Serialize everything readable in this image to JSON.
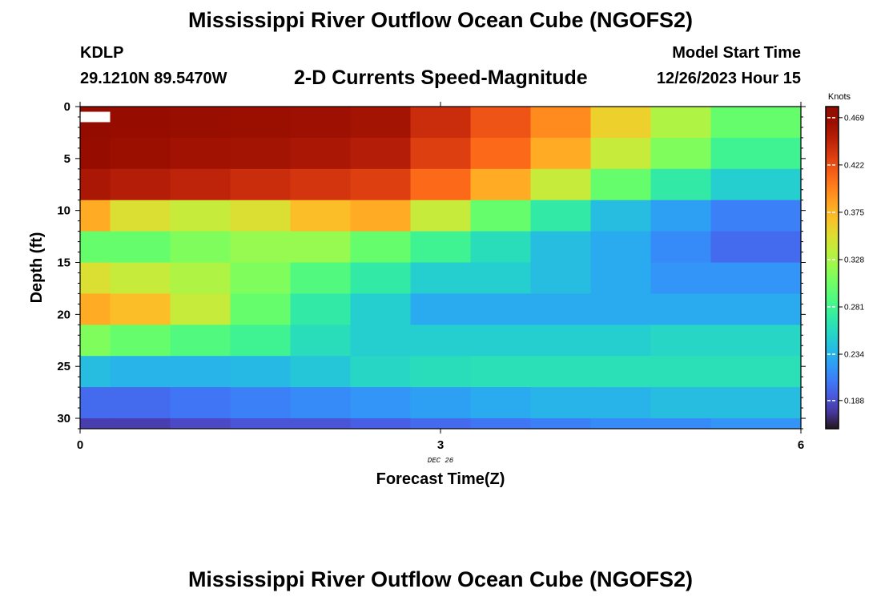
{
  "header": {
    "title": "Mississippi River Outflow Ocean Cube (NGOFS2)",
    "station": "KDLP",
    "coords": "29.1210N  89.5470W",
    "subtitle": "2-D Currents Speed-Magnitude",
    "model_start_label": "Model Start Time",
    "model_start_value": "12/26/2023 Hour 15"
  },
  "footer": {
    "title": "Mississippi River Outflow Ocean Cube (NGOFS2)"
  },
  "chart_data": {
    "type": "heatmap",
    "xlabel": "Forecast Time(Z)",
    "ylabel": "Depth (ft)",
    "x_date_label": "DEC 26",
    "xlim": [
      0,
      6
    ],
    "ylim": [
      0,
      31
    ],
    "x_ticks": [
      0,
      3,
      6
    ],
    "y_ticks": [
      0,
      5,
      10,
      15,
      20,
      25,
      30
    ],
    "colorbar": {
      "unit": "Knots",
      "ticks": [
        "0.469",
        "0.422",
        "0.375",
        "0.328",
        "0.281",
        "0.234",
        "0.188"
      ],
      "tick_values": [
        0.469,
        0.422,
        0.375,
        0.328,
        0.281,
        0.234,
        0.188
      ],
      "range": [
        0.16,
        0.48
      ],
      "colormap": "turbo"
    },
    "x": [
      0.25,
      0.75,
      1.25,
      1.75,
      2.25,
      2.75,
      3.25,
      3.75,
      4.25,
      4.75,
      5.25,
      5.75
    ],
    "x_edges": [
      0,
      0.25,
      0.75,
      1.25,
      1.75,
      2.25,
      2.75,
      3.25,
      3.75,
      4.25,
      4.75,
      5.25,
      6
    ],
    "depth_edges": [
      0,
      3,
      6,
      9,
      12,
      15,
      18,
      21,
      24,
      27,
      30,
      31
    ],
    "values": [
      [
        0.47,
        0.468,
        0.466,
        0.464,
        0.462,
        0.458,
        0.44,
        0.42,
        0.395,
        0.36,
        0.33,
        0.3
      ],
      [
        0.468,
        0.464,
        0.46,
        0.458,
        0.455,
        0.45,
        0.43,
        0.41,
        0.38,
        0.34,
        0.31,
        0.28
      ],
      [
        0.455,
        0.45,
        0.445,
        0.44,
        0.435,
        0.43,
        0.41,
        0.38,
        0.34,
        0.3,
        0.27,
        0.25
      ],
      [
        0.38,
        0.35,
        0.34,
        0.35,
        0.37,
        0.38,
        0.34,
        0.3,
        0.27,
        0.24,
        0.225,
        0.21
      ],
      [
        0.3,
        0.3,
        0.31,
        0.32,
        0.32,
        0.3,
        0.28,
        0.26,
        0.24,
        0.23,
        0.215,
        0.2
      ],
      [
        0.35,
        0.34,
        0.33,
        0.31,
        0.29,
        0.27,
        0.25,
        0.25,
        0.24,
        0.23,
        0.22,
        0.22
      ],
      [
        0.38,
        0.37,
        0.34,
        0.3,
        0.27,
        0.25,
        0.23,
        0.23,
        0.23,
        0.23,
        0.23,
        0.23
      ],
      [
        0.31,
        0.3,
        0.29,
        0.28,
        0.26,
        0.25,
        0.25,
        0.25,
        0.25,
        0.25,
        0.255,
        0.255
      ],
      [
        0.24,
        0.235,
        0.235,
        0.238,
        0.245,
        0.255,
        0.26,
        0.262,
        0.262,
        0.262,
        0.262,
        0.262
      ],
      [
        0.2,
        0.2,
        0.205,
        0.21,
        0.215,
        0.22,
        0.225,
        0.23,
        0.235,
        0.235,
        0.24,
        0.24
      ],
      [
        0.18,
        0.18,
        0.185,
        0.19,
        0.19,
        0.195,
        0.2,
        0.205,
        0.21,
        0.215,
        0.215,
        0.22
      ]
    ],
    "missing_cell": {
      "x_range": [
        0,
        0.25
      ],
      "depth_range": [
        0.5,
        1.5
      ]
    }
  }
}
